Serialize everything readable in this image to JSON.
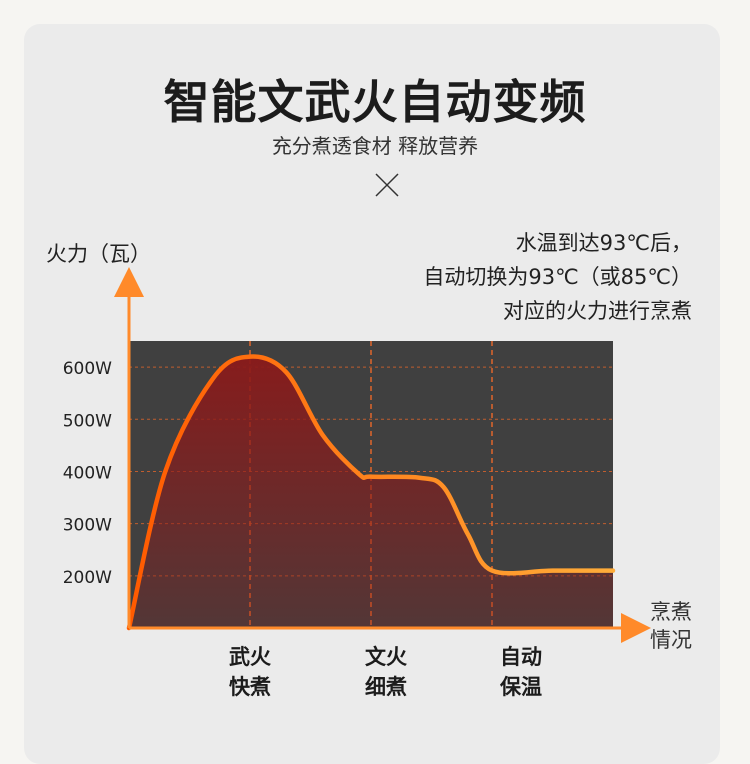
{
  "title": "智能文武火自动变频",
  "subtitle": "充分煮透食材 释放营养",
  "note": {
    "line1": "水温到达93℃后，",
    "line2": "自动切换为93℃（或85℃）",
    "line3": "对应的火力进行烹煮"
  },
  "colors": {
    "plot_bg": "#404040",
    "curve_start": "#ff5a00",
    "curve_end": "#ffad3a",
    "fill": "#8b1a1a",
    "grid": "#e0652a",
    "axis": "#ff8a2a"
  },
  "chart_data": {
    "type": "line",
    "title": "",
    "xlabel": "烹煮\n情况",
    "ylabel": "火力（瓦）",
    "y_ticks": [
      "200W",
      "300W",
      "400W",
      "500W",
      "600W"
    ],
    "y_tick_values": [
      200,
      300,
      400,
      500,
      600
    ],
    "ylim": [
      100,
      650
    ],
    "categories": [
      "武火\n快煮",
      "文火\n细煮",
      "自动\n保温"
    ],
    "xlim": [
      0,
      4
    ],
    "series": [
      {
        "x": [
          0,
          0.3,
          0.7,
          1.0,
          1.3,
          1.6,
          1.9,
          2.0,
          2.4,
          2.6,
          2.8,
          3.0,
          3.5,
          4.0
        ],
        "y": [
          100,
          400,
          580,
          620,
          590,
          470,
          395,
          390,
          388,
          370,
          280,
          210,
          210,
          210
        ]
      }
    ],
    "grid": true,
    "legend": "none"
  },
  "phase_labels": [
    {
      "line1": "武火",
      "line2": "快煮"
    },
    {
      "line1": "文火",
      "line2": "细煮"
    },
    {
      "line1": "自动",
      "line2": "保温"
    }
  ],
  "x_axis_label": {
    "line1": "烹煮",
    "line2": "情况"
  }
}
